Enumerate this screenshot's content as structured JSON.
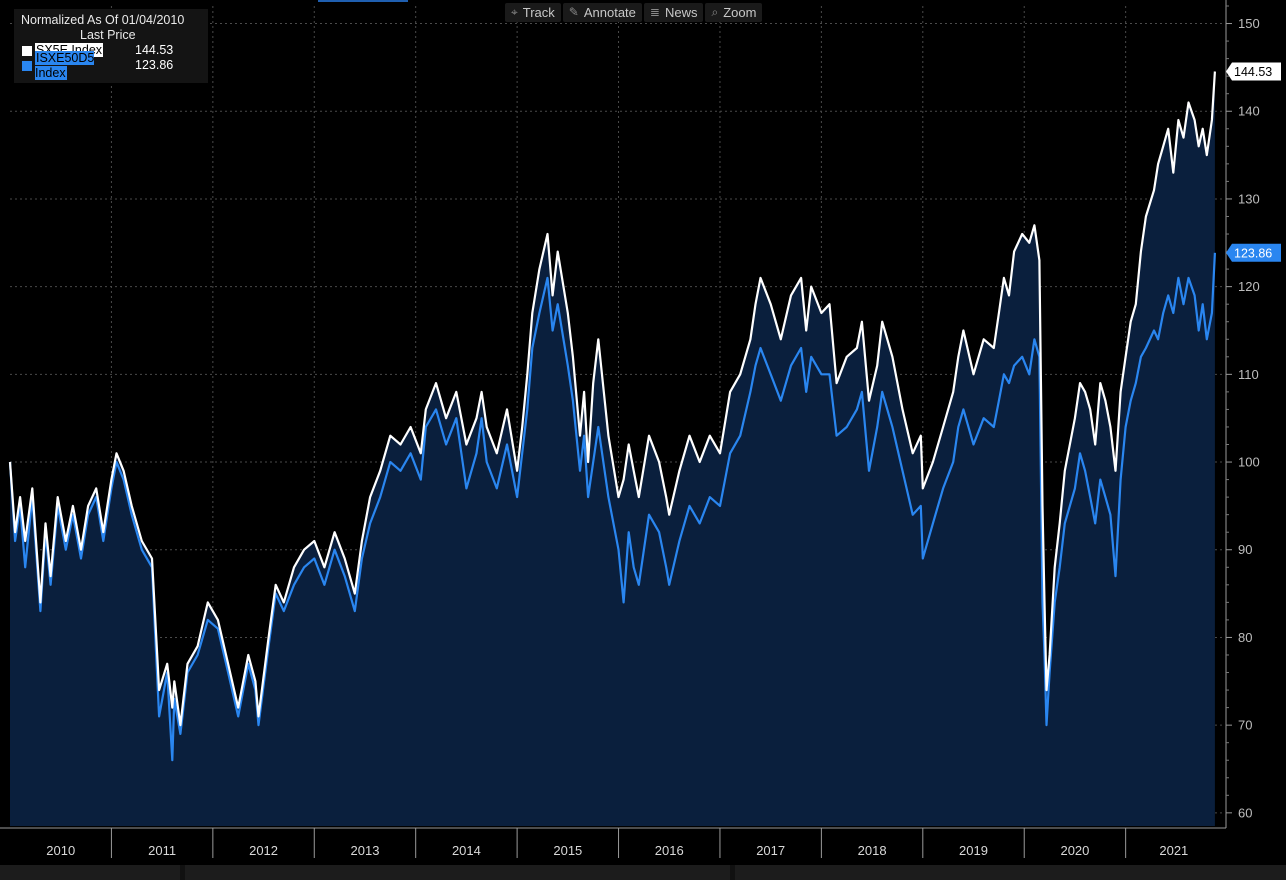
{
  "toolbar": {
    "track_label": "Track",
    "annotate_label": "Annotate",
    "news_label": "News",
    "zoom_label": "Zoom"
  },
  "legend": {
    "header_line1": "Normalized As Of 01/04/2010",
    "header_line2": "Last Price",
    "entries": [
      {
        "name": "SX5E Index",
        "value": "144.53",
        "color": "#ffffff"
      },
      {
        "name": "ISXE50D5 Index",
        "value": "123.86",
        "color": "#2a86f0"
      }
    ]
  },
  "colors": {
    "background": "#000000",
    "area_fill": "#0a1f3d",
    "grid": "#4a4a4a",
    "sx5e": "#ffffff",
    "isxe50d5": "#2a86f0"
  },
  "chart_data": {
    "type": "line",
    "title": "",
    "xlabel": "",
    "ylabel": "",
    "x_ticks": [
      "2010",
      "2011",
      "2012",
      "2013",
      "2014",
      "2015",
      "2016",
      "2017",
      "2018",
      "2019",
      "2020",
      "2021"
    ],
    "y_ticks": [
      60,
      70,
      80,
      90,
      100,
      110,
      120,
      130,
      140,
      150
    ],
    "ylim": [
      58.5,
      152
    ],
    "xlim": [
      2010.0,
      2021.95
    ],
    "grid": true,
    "legend_position": "top-left",
    "last_value_labels": [
      "144.53",
      "123.86"
    ],
    "series": [
      {
        "name": "SX5E Index",
        "color": "#ffffff",
        "last": 144.53,
        "x": [
          2010.0,
          2010.05,
          2010.1,
          2010.15,
          2010.22,
          2010.3,
          2010.35,
          2010.4,
          2010.47,
          2010.55,
          2010.62,
          2010.7,
          2010.77,
          2010.85,
          2010.92,
          2011.0,
          2011.05,
          2011.12,
          2011.2,
          2011.3,
          2011.4,
          2011.47,
          2011.55,
          2011.6,
          2011.62,
          2011.68,
          2011.75,
          2011.85,
          2011.95,
          2012.05,
          2012.15,
          2012.25,
          2012.35,
          2012.42,
          2012.45,
          2012.55,
          2012.62,
          2012.7,
          2012.8,
          2012.9,
          2013.0,
          2013.1,
          2013.2,
          2013.3,
          2013.4,
          2013.47,
          2013.55,
          2013.65,
          2013.75,
          2013.85,
          2013.95,
          2014.05,
          2014.1,
          2014.2,
          2014.3,
          2014.4,
          2014.5,
          2014.6,
          2014.65,
          2014.7,
          2014.8,
          2014.9,
          2015.0,
          2015.05,
          2015.1,
          2015.15,
          2015.22,
          2015.3,
          2015.35,
          2015.4,
          2015.5,
          2015.55,
          2015.62,
          2015.66,
          2015.7,
          2015.75,
          2015.8,
          2015.9,
          2016.0,
          2016.05,
          2016.1,
          2016.15,
          2016.2,
          2016.3,
          2016.4,
          2016.47,
          2016.5,
          2016.6,
          2016.7,
          2016.8,
          2016.9,
          2017.0,
          2017.1,
          2017.2,
          2017.3,
          2017.35,
          2017.4,
          2017.5,
          2017.6,
          2017.7,
          2017.8,
          2017.85,
          2017.9,
          2018.0,
          2018.08,
          2018.15,
          2018.25,
          2018.35,
          2018.4,
          2018.47,
          2018.55,
          2018.6,
          2018.7,
          2018.8,
          2018.9,
          2018.98,
          2019.0,
          2019.1,
          2019.2,
          2019.3,
          2019.35,
          2019.4,
          2019.5,
          2019.6,
          2019.7,
          2019.75,
          2019.8,
          2019.85,
          2019.9,
          2019.98,
          2020.05,
          2020.1,
          2020.15,
          2020.18,
          2020.2,
          2020.22,
          2020.25,
          2020.3,
          2020.35,
          2020.4,
          2020.5,
          2020.55,
          2020.6,
          2020.65,
          2020.7,
          2020.75,
          2020.8,
          2020.85,
          2020.9,
          2020.95,
          2021.0,
          2021.05,
          2021.1,
          2021.15,
          2021.2,
          2021.28,
          2021.32,
          2021.37,
          2021.42,
          2021.47,
          2021.52,
          2021.57,
          2021.62,
          2021.68,
          2021.72,
          2021.76,
          2021.8,
          2021.85,
          2021.88
        ],
        "y": [
          100,
          92,
          96,
          91,
          97,
          84,
          93,
          87,
          96,
          91,
          95,
          90,
          95,
          97,
          92,
          98,
          101,
          99,
          95,
          91,
          89,
          74,
          77,
          72,
          75,
          70,
          77,
          79,
          84,
          82,
          77,
          72,
          78,
          75,
          71,
          80,
          86,
          84,
          88,
          90,
          91,
          88,
          92,
          89,
          85,
          91,
          96,
          99,
          103,
          102,
          104,
          101,
          106,
          109,
          105,
          108,
          102,
          105,
          108,
          104,
          101,
          106,
          99,
          104,
          110,
          117,
          122,
          126,
          119,
          124,
          117,
          112,
          103,
          108,
          100,
          109,
          114,
          103,
          96,
          98,
          102,
          99,
          96,
          103,
          100,
          96,
          94,
          99,
          103,
          100,
          103,
          101,
          108,
          110,
          114,
          118,
          121,
          118,
          114,
          119,
          121,
          115,
          120,
          117,
          118,
          109,
          112,
          113,
          116,
          107,
          111,
          116,
          112,
          106,
          101,
          103,
          97,
          100,
          104,
          108,
          112,
          115,
          110,
          114,
          113,
          117,
          121,
          119,
          124,
          126,
          125,
          127,
          123,
          95,
          84,
          74,
          78,
          88,
          93,
          99,
          105,
          109,
          108,
          106,
          102,
          109,
          107,
          104,
          99,
          108,
          112,
          116,
          118,
          124,
          128,
          131,
          134,
          136,
          138,
          133,
          139,
          137,
          141,
          139,
          136,
          138,
          135,
          139,
          144.53
        ]
      },
      {
        "name": "ISXE50D5 Index",
        "color": "#2a86f0",
        "last": 123.86,
        "x": [
          2010.0,
          2010.05,
          2010.1,
          2010.15,
          2010.22,
          2010.3,
          2010.35,
          2010.4,
          2010.47,
          2010.55,
          2010.62,
          2010.7,
          2010.77,
          2010.85,
          2010.92,
          2011.0,
          2011.05,
          2011.12,
          2011.2,
          2011.3,
          2011.4,
          2011.47,
          2011.55,
          2011.6,
          2011.62,
          2011.68,
          2011.75,
          2011.85,
          2011.95,
          2012.05,
          2012.15,
          2012.25,
          2012.35,
          2012.42,
          2012.45,
          2012.55,
          2012.62,
          2012.7,
          2012.8,
          2012.9,
          2013.0,
          2013.1,
          2013.2,
          2013.3,
          2013.4,
          2013.47,
          2013.55,
          2013.65,
          2013.75,
          2013.85,
          2013.95,
          2014.05,
          2014.1,
          2014.2,
          2014.3,
          2014.4,
          2014.5,
          2014.6,
          2014.65,
          2014.7,
          2014.8,
          2014.9,
          2015.0,
          2015.05,
          2015.1,
          2015.15,
          2015.22,
          2015.3,
          2015.35,
          2015.4,
          2015.5,
          2015.55,
          2015.62,
          2015.66,
          2015.7,
          2015.75,
          2015.8,
          2015.9,
          2016.0,
          2016.05,
          2016.1,
          2016.15,
          2016.2,
          2016.3,
          2016.4,
          2016.47,
          2016.5,
          2016.6,
          2016.7,
          2016.8,
          2016.9,
          2017.0,
          2017.1,
          2017.2,
          2017.3,
          2017.35,
          2017.4,
          2017.5,
          2017.6,
          2017.7,
          2017.8,
          2017.85,
          2017.9,
          2018.0,
          2018.08,
          2018.15,
          2018.25,
          2018.35,
          2018.4,
          2018.47,
          2018.55,
          2018.6,
          2018.7,
          2018.8,
          2018.9,
          2018.98,
          2019.0,
          2019.1,
          2019.2,
          2019.3,
          2019.35,
          2019.4,
          2019.5,
          2019.6,
          2019.7,
          2019.75,
          2019.8,
          2019.85,
          2019.9,
          2019.98,
          2020.05,
          2020.1,
          2020.15,
          2020.18,
          2020.2,
          2020.22,
          2020.25,
          2020.3,
          2020.35,
          2020.4,
          2020.5,
          2020.55,
          2020.6,
          2020.65,
          2020.7,
          2020.75,
          2020.8,
          2020.85,
          2020.9,
          2020.95,
          2021.0,
          2021.05,
          2021.1,
          2021.15,
          2021.2,
          2021.28,
          2021.32,
          2021.37,
          2021.42,
          2021.47,
          2021.52,
          2021.57,
          2021.62,
          2021.68,
          2021.72,
          2021.76,
          2021.8,
          2021.85,
          2021.88
        ],
        "y": [
          100,
          91,
          95,
          88,
          96,
          83,
          92,
          86,
          95,
          90,
          94,
          89,
          94,
          96,
          91,
          97,
          100,
          98,
          94,
          90,
          88,
          71,
          76,
          66,
          73,
          69,
          76,
          78,
          82,
          81,
          76,
          71,
          77,
          74,
          70,
          79,
          85,
          83,
          86,
          88,
          89,
          86,
          90,
          87,
          83,
          89,
          93,
          96,
          100,
          99,
          101,
          98,
          104,
          106,
          102,
          105,
          97,
          101,
          105,
          100,
          97,
          102,
          96,
          101,
          106,
          113,
          117,
          121,
          115,
          118,
          111,
          107,
          99,
          103,
          96,
          100,
          104,
          96,
          90,
          84,
          92,
          88,
          86,
          94,
          92,
          88,
          86,
          91,
          95,
          93,
          96,
          95,
          101,
          103,
          108,
          111,
          113,
          110,
          107,
          111,
          113,
          108,
          112,
          110,
          110,
          103,
          104,
          106,
          108,
          99,
          104,
          108,
          104,
          99,
          94,
          95,
          89,
          93,
          97,
          100,
          104,
          106,
          102,
          105,
          104,
          107,
          110,
          109,
          111,
          112,
          110,
          114,
          112,
          84,
          78,
          70,
          76,
          84,
          88,
          93,
          97,
          101,
          99,
          96,
          93,
          98,
          96,
          94,
          87,
          98,
          104,
          107,
          109,
          112,
          113,
          115,
          114,
          117,
          119,
          117,
          121,
          118,
          121,
          119,
          115,
          118,
          114,
          117,
          123.86
        ]
      }
    ]
  }
}
